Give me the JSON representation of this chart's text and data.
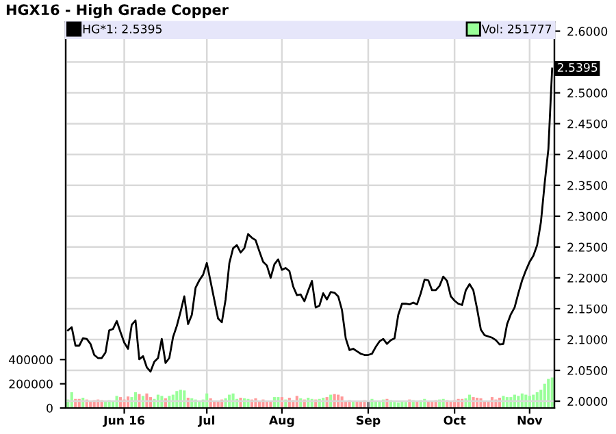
{
  "chart_data": {
    "type": "bar",
    "title": "HGX16 - High Grade Copper",
    "legend": "top",
    "grid": true,
    "categories": [
      null,
      null,
      null,
      null,
      null,
      null,
      null,
      null,
      null,
      null,
      null,
      null,
      null,
      null,
      null,
      "Jun 16",
      null,
      null,
      null,
      null,
      null,
      null,
      null,
      null,
      null,
      null,
      null,
      null,
      null,
      null,
      null,
      null,
      null,
      null,
      null,
      null,
      null,
      "Jul",
      null,
      null,
      null,
      null,
      null,
      null,
      null,
      null,
      null,
      null,
      null,
      null,
      null,
      null,
      null,
      null,
      null,
      null,
      null,
      "Aug",
      null,
      null,
      null,
      null,
      null,
      null,
      null,
      null,
      null,
      null,
      null,
      null,
      null,
      null,
      null,
      null,
      null,
      null,
      null,
      null,
      null,
      null,
      "Sep",
      null,
      null,
      null,
      null,
      null,
      null,
      null,
      null,
      null,
      null,
      null,
      null,
      null,
      null,
      null,
      null,
      null,
      null,
      null,
      null,
      null,
      null,
      "Oct",
      null,
      null,
      null,
      null,
      null,
      null,
      null,
      null,
      null,
      null,
      null,
      null,
      null,
      null,
      null,
      null,
      null,
      null,
      null,
      "Nov",
      null,
      null,
      null,
      null,
      null,
      null
    ],
    "ylim": [
      0,
      3190000
    ],
    "yticks": [
      0,
      200000,
      400000
    ],
    "y2lim": [
      1.989,
      2.615
    ],
    "y2ticks": [
      {
        "value": 2.0,
        "label": "2.0000"
      },
      {
        "value": 2.05,
        "label": "2.0500"
      },
      {
        "value": 2.1,
        "label": "2.1000"
      },
      {
        "value": 2.15,
        "label": "2.1500"
      },
      {
        "value": 2.2,
        "label": "2.2000"
      },
      {
        "value": 2.25,
        "label": "2.2500"
      },
      {
        "value": 2.3,
        "label": "2.3000"
      },
      {
        "value": 2.35,
        "label": "2.3500"
      },
      {
        "value": 2.4,
        "label": "2.4000"
      },
      {
        "value": 2.45,
        "label": "2.4500"
      },
      {
        "value": 2.5,
        "label": "2.5000"
      },
      {
        "value": 2.55,
        "label": null
      },
      {
        "value": 2.6,
        "label": "2.6000"
      }
    ],
    "annotations": [
      "2.5395"
    ],
    "series": [
      {
        "name": "HG*1: 2.5395",
        "type": "line",
        "axis": "y2",
        "color": "#000000",
        "values": [
          2.115,
          2.12,
          2.09,
          2.09,
          2.102,
          2.101,
          2.093,
          2.075,
          2.07,
          2.07,
          2.079,
          2.115,
          2.117,
          2.13,
          2.112,
          2.095,
          2.085,
          2.124,
          2.131,
          2.068,
          2.073,
          2.055,
          2.048,
          2.064,
          2.07,
          2.101,
          2.062,
          2.07,
          2.104,
          2.122,
          2.145,
          2.17,
          2.125,
          2.14,
          2.184,
          2.196,
          2.205,
          2.224,
          2.194,
          2.164,
          2.134,
          2.128,
          2.165,
          2.224,
          2.248,
          2.253,
          2.241,
          2.248,
          2.271,
          2.265,
          2.261,
          2.243,
          2.226,
          2.22,
          2.2,
          2.222,
          2.23,
          2.213,
          2.216,
          2.211,
          2.186,
          2.172,
          2.173,
          2.162,
          2.179,
          2.195,
          2.152,
          2.155,
          2.175,
          2.165,
          2.177,
          2.176,
          2.17,
          2.148,
          2.102,
          2.083,
          2.085,
          2.081,
          2.077,
          2.075,
          2.075,
          2.077,
          2.088,
          2.097,
          2.101,
          2.093,
          2.099,
          2.102,
          2.14,
          2.158,
          2.158,
          2.157,
          2.16,
          2.157,
          2.175,
          2.197,
          2.196,
          2.18,
          2.18,
          2.187,
          2.202,
          2.195,
          2.17,
          2.163,
          2.158,
          2.156,
          2.18,
          2.19,
          2.18,
          2.15,
          2.116,
          2.107,
          2.105,
          2.103,
          2.099,
          2.092,
          2.093,
          2.125,
          2.141,
          2.152,
          2.175,
          2.196,
          2.212,
          2.226,
          2.236,
          2.253,
          2.29,
          2.353,
          2.409,
          2.5395
        ]
      },
      {
        "name": "Vol: 251777",
        "color": "#99ff99",
        "values": [
          70000,
          130000,
          75000,
          75000,
          85000,
          70000,
          60000,
          65000,
          70000,
          65000,
          60000,
          65000,
          55000,
          100000,
          90000,
          70000,
          95000,
          90000,
          130000,
          115000,
          100000,
          120000,
          90000,
          75000,
          110000,
          100000,
          80000,
          100000,
          110000,
          140000,
          150000,
          145000,
          85000,
          80000,
          70000,
          60000,
          70000,
          120000,
          80000,
          60000,
          60000,
          70000,
          80000,
          110000,
          120000,
          75000,
          85000,
          80000,
          75000,
          70000,
          80000,
          60000,
          70000,
          60000,
          55000,
          90000,
          90000,
          90000,
          70000,
          85000,
          65000,
          100000,
          80000,
          70000,
          85000,
          75000,
          70000,
          75000,
          85000,
          90000,
          110000,
          115000,
          110000,
          95000,
          60000,
          65000,
          55000,
          60000,
          55000,
          65000,
          55000,
          75000,
          55000,
          55000,
          70000,
          75000,
          65000,
          50000,
          45000,
          55000,
          50000,
          70000,
          65000,
          55000,
          65000,
          75000,
          60000,
          60000,
          65000,
          70000,
          75000,
          65000,
          55000,
          65000,
          75000,
          75000,
          80000,
          110000,
          90000,
          85000,
          80000,
          60000,
          60000,
          90000,
          70000,
          85000,
          100000,
          90000,
          90000,
          110000,
          100000,
          120000,
          110000,
          100000,
          110000,
          130000,
          150000,
          200000,
          240000,
          251777
        ],
        "colors": [
          "#99ff99",
          "#99ff99",
          "#ff9999",
          "#ff9999",
          "#99ff99",
          "#ff9999",
          "#ff9999",
          "#ff9999",
          "#ff9999",
          "#ff9999",
          "#99ff99",
          "#99ff99",
          "#99ff99",
          "#99ff99",
          "#ff9999",
          "#ff9999",
          "#ff9999",
          "#99ff99",
          "#99ff99",
          "#ff9999",
          "#99ff99",
          "#ff9999",
          "#ff9999",
          "#99ff99",
          "#99ff99",
          "#99ff99",
          "#ff9999",
          "#99ff99",
          "#99ff99",
          "#99ff99",
          "#99ff99",
          "#99ff99",
          "#ff9999",
          "#99ff99",
          "#99ff99",
          "#99ff99",
          "#99ff99",
          "#99ff99",
          "#ff9999",
          "#ff9999",
          "#ff9999",
          "#ff9999",
          "#99ff99",
          "#99ff99",
          "#99ff99",
          "#99ff99",
          "#ff9999",
          "#99ff99",
          "#99ff99",
          "#ff9999",
          "#ff9999",
          "#ff9999",
          "#ff9999",
          "#ff9999",
          "#ff9999",
          "#99ff99",
          "#99ff99",
          "#ff9999",
          "#99ff99",
          "#ff9999",
          "#ff9999",
          "#ff9999",
          "#99ff99",
          "#ff9999",
          "#99ff99",
          "#99ff99",
          "#ff9999",
          "#99ff99",
          "#99ff99",
          "#ff9999",
          "#99ff99",
          "#ff9999",
          "#ff9999",
          "#ff9999",
          "#ff9999",
          "#ff9999",
          "#99ff99",
          "#ff9999",
          "#ff9999",
          "#ff9999",
          "#808080",
          "#99ff99",
          "#99ff99",
          "#99ff99",
          "#99ff99",
          "#ff9999",
          "#99ff99",
          "#99ff99",
          "#99ff99",
          "#99ff99",
          "#99ff99",
          "#ff9999",
          "#99ff99",
          "#ff9999",
          "#99ff99",
          "#99ff99",
          "#ff9999",
          "#ff9999",
          "#ff9999",
          "#99ff99",
          "#99ff99",
          "#ff9999",
          "#ff9999",
          "#ff9999",
          "#ff9999",
          "#ff9999",
          "#99ff99",
          "#99ff99",
          "#ff9999",
          "#ff9999",
          "#ff9999",
          "#ff9999",
          "#ff9999",
          "#ff9999",
          "#ff9999",
          "#ff9999",
          "#99ff99",
          "#99ff99",
          "#99ff99",
          "#99ff99",
          "#99ff99",
          "#99ff99",
          "#99ff99",
          "#99ff99",
          "#99ff99",
          "#99ff99",
          "#99ff99",
          "#99ff99",
          "#99ff99",
          "#99ff99"
        ]
      }
    ]
  }
}
